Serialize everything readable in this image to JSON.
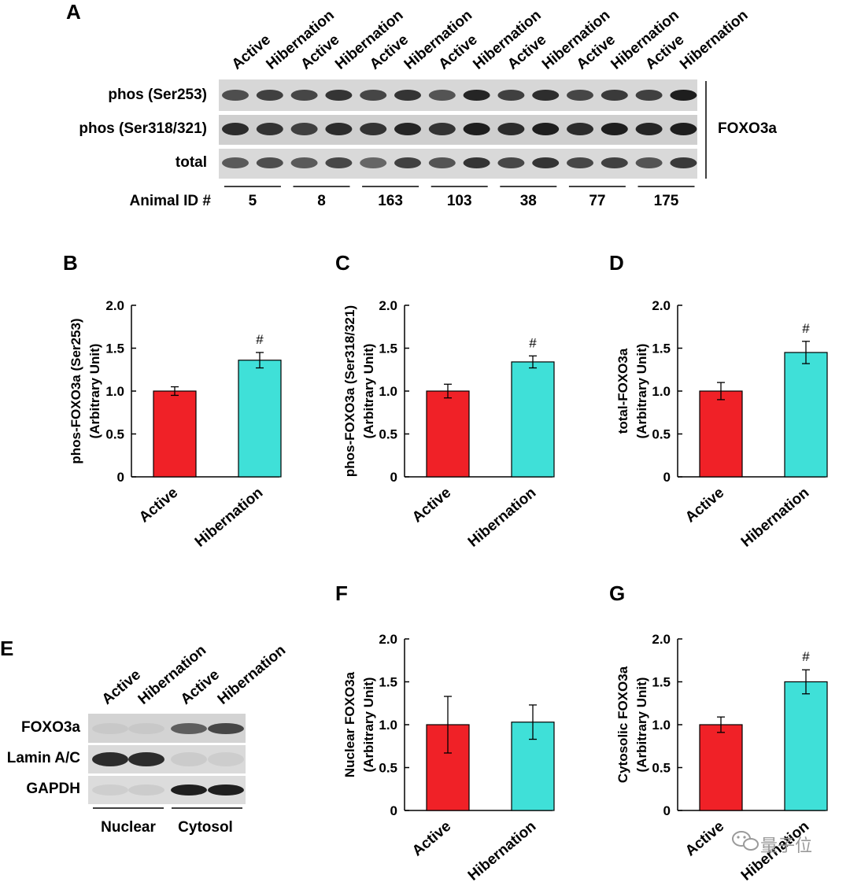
{
  "panel_labels": {
    "a": "A",
    "b": "B",
    "c": "C",
    "d": "D",
    "e": "E",
    "f": "F",
    "g": "G"
  },
  "blot_a": {
    "lanes": [
      "Active",
      "Hibernation",
      "Active",
      "Hibernation",
      "Active",
      "Hibernation",
      "Active",
      "Hibernation",
      "Active",
      "Hibernation",
      "Active",
      "Hibernation",
      "Active",
      "Hibernation"
    ],
    "rows": [
      "phos (Ser253)",
      "phos (Ser318/321)",
      "total"
    ],
    "protein": "FOXO3a",
    "animal_label": "Animal ID #",
    "animal_ids": [
      "5",
      "8",
      "163",
      "103",
      "38",
      "77",
      "175"
    ]
  },
  "blot_e": {
    "lanes": [
      "Active",
      "Hibernation",
      "Active",
      "Hibernation"
    ],
    "rows": [
      "FOXO3a",
      "Lamin A/C",
      "GAPDH"
    ],
    "groups": [
      "Nuclear",
      "Cytosol"
    ]
  },
  "chart_data": [
    {
      "id": "B",
      "type": "bar",
      "categories": [
        "Active",
        "Hibernation"
      ],
      "values": [
        1.0,
        1.36
      ],
      "errors": [
        0.05,
        0.09
      ],
      "significance": [
        "",
        "#"
      ],
      "ylabel_line1": "phos-FOXO3a (Ser253)",
      "ylabel_line2": "(Arbitrary Unit)",
      "ylim": [
        0,
        2.0
      ],
      "yticks": [
        "0",
        "0.5",
        "1.0",
        "1.5",
        "2.0"
      ],
      "colors": [
        "#f02127",
        "#3fe0d8"
      ]
    },
    {
      "id": "C",
      "type": "bar",
      "categories": [
        "Active",
        "Hibernation"
      ],
      "values": [
        1.0,
        1.34
      ],
      "errors": [
        0.08,
        0.07
      ],
      "significance": [
        "",
        "#"
      ],
      "ylabel_line1": "phos-FOXO3a (Ser318/321)",
      "ylabel_line2": "(Arbitrary Unit)",
      "ylim": [
        0,
        2.0
      ],
      "yticks": [
        "0",
        "0.5",
        "1.0",
        "1.5",
        "2.0"
      ],
      "colors": [
        "#f02127",
        "#3fe0d8"
      ]
    },
    {
      "id": "D",
      "type": "bar",
      "categories": [
        "Active",
        "Hibernation"
      ],
      "values": [
        1.0,
        1.45
      ],
      "errors": [
        0.1,
        0.13
      ],
      "significance": [
        "",
        "#"
      ],
      "ylabel_line1": "total-FOXO3a",
      "ylabel_line2": "(Arbitrary Unit)",
      "ylim": [
        0,
        2.0
      ],
      "yticks": [
        "0",
        "0.5",
        "1.0",
        "1.5",
        "2.0"
      ],
      "colors": [
        "#f02127",
        "#3fe0d8"
      ]
    },
    {
      "id": "F",
      "type": "bar",
      "categories": [
        "Active",
        "Hibernation"
      ],
      "values": [
        1.0,
        1.03
      ],
      "errors": [
        0.33,
        0.2
      ],
      "significance": [
        "",
        ""
      ],
      "ylabel_line1": "Nuclear FOXO3a",
      "ylabel_line2": "(Arbitrary Unit)",
      "ylim": [
        0,
        2.0
      ],
      "yticks": [
        "0",
        "0.5",
        "1.0",
        "1.5",
        "2.0"
      ],
      "colors": [
        "#f02127",
        "#3fe0d8"
      ]
    },
    {
      "id": "G",
      "type": "bar",
      "categories": [
        "Active",
        "Hibernation"
      ],
      "values": [
        1.0,
        1.5
      ],
      "errors": [
        0.09,
        0.14
      ],
      "significance": [
        "",
        "#"
      ],
      "ylabel_line1": "Cytosolic FOXO3a",
      "ylabel_line2": "(Arbitrary Unit)",
      "ylim": [
        0,
        2.0
      ],
      "yticks": [
        "0",
        "0.5",
        "1.0",
        "1.5",
        "2.0"
      ],
      "colors": [
        "#f02127",
        "#3fe0d8"
      ]
    }
  ],
  "watermark": {
    "text": "量子位",
    "icon": "wechat-icon"
  }
}
